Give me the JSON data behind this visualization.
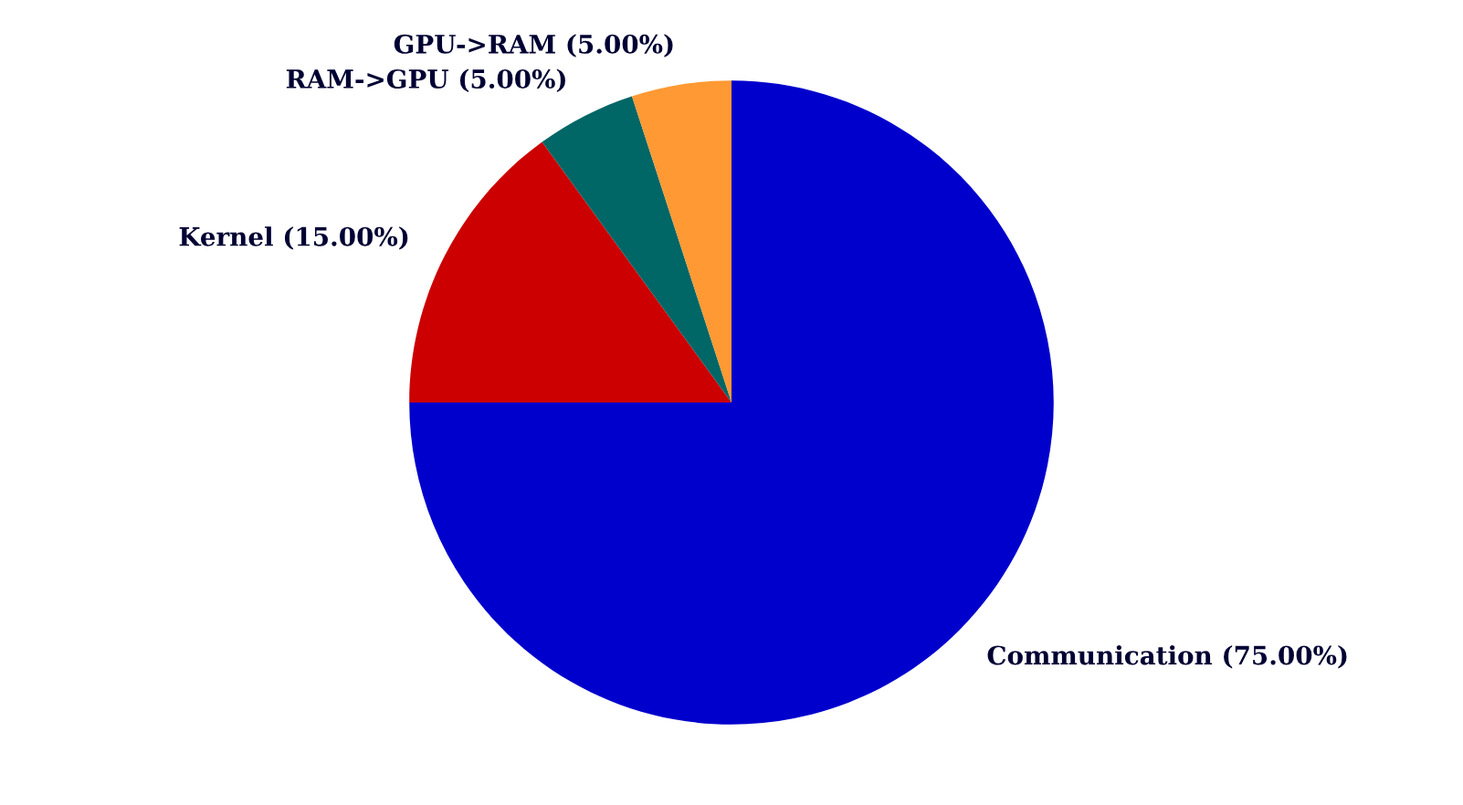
{
  "chart_data": {
    "type": "pie",
    "categories": [
      "Communication (75.00%)",
      "Kernel (15.00%)",
      "RAM->GPU (5.00%)",
      "GPU->RAM (5.00%)"
    ],
    "values": [
      75,
      15,
      5,
      5
    ],
    "colors": [
      "#0000cc",
      "#cc0000",
      "#006666",
      "#ff9933"
    ]
  }
}
